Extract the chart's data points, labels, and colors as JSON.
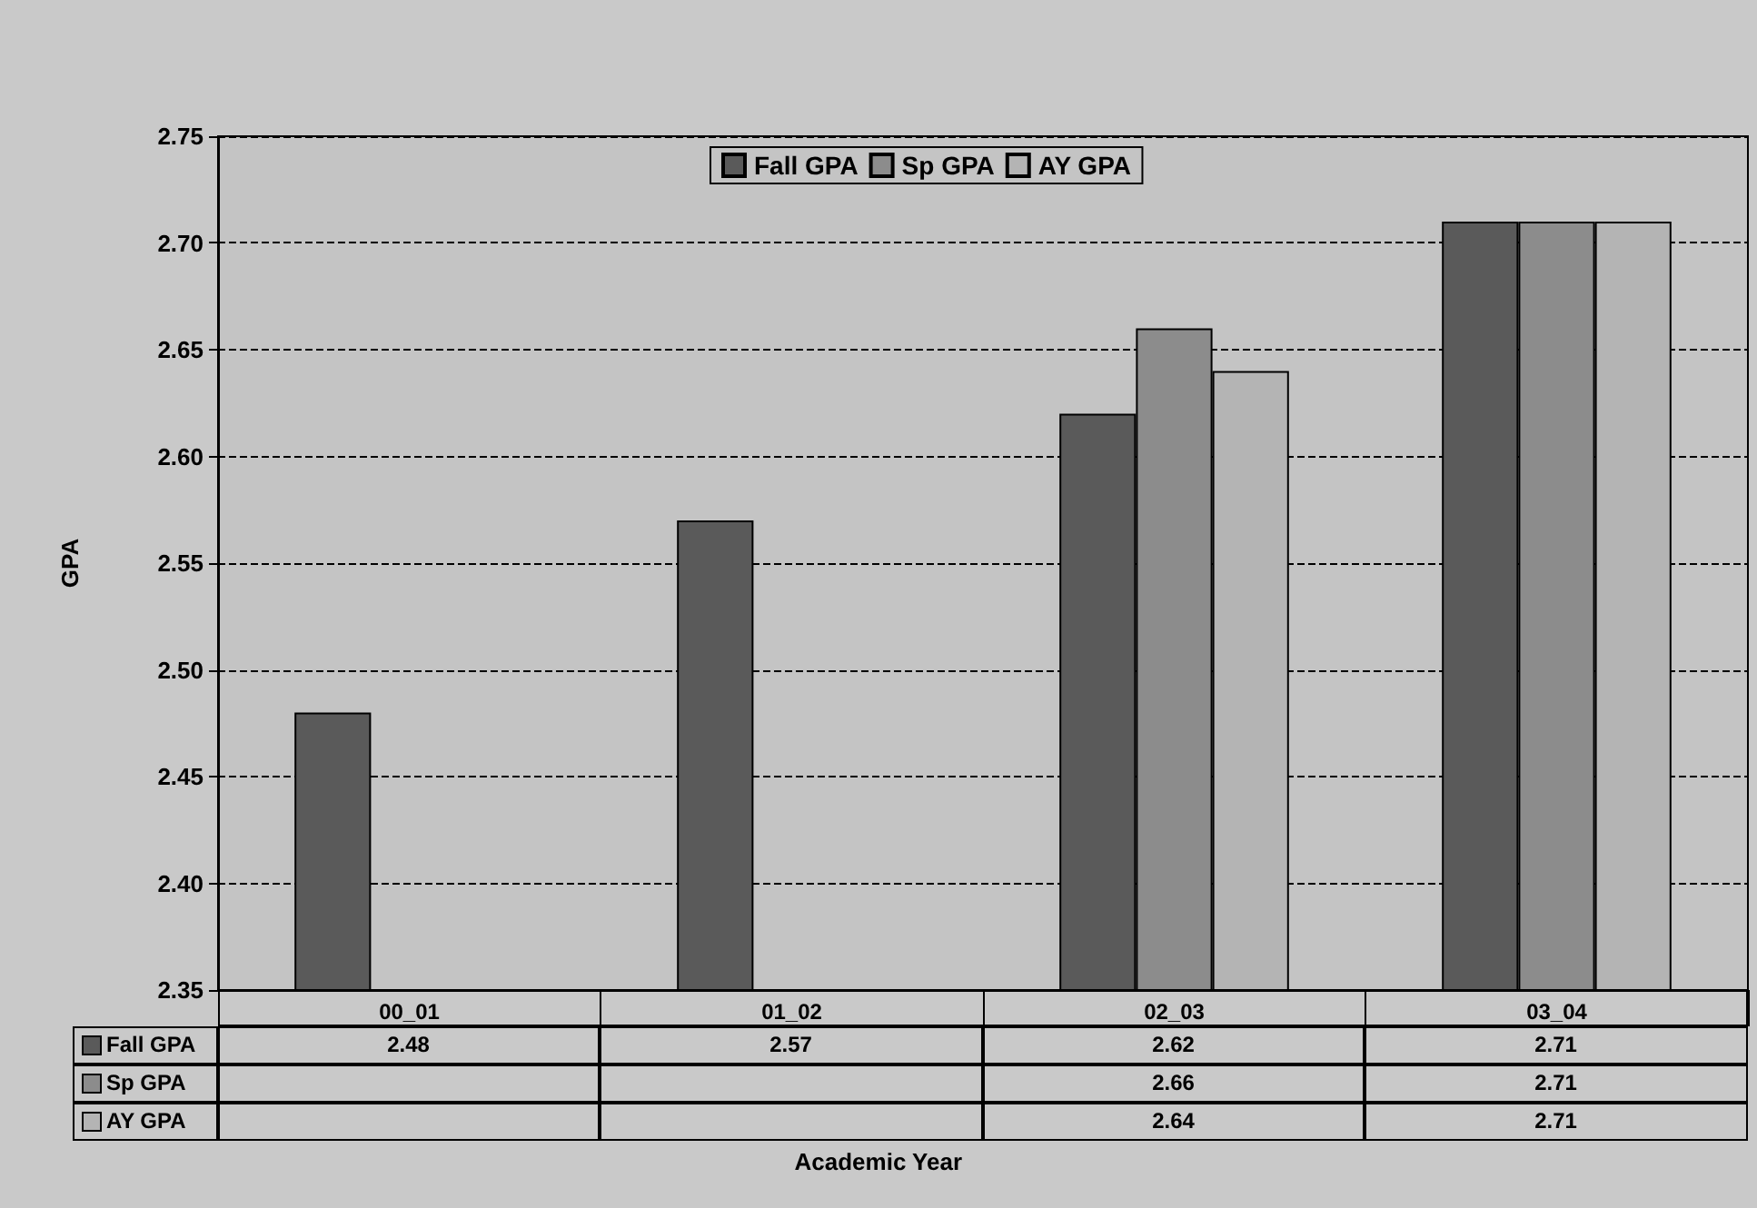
{
  "chart_data": {
    "type": "bar",
    "annotations": [
      "Academic Year"
    ],
    "ylabel": "GPA",
    "categories": [
      "00_01",
      "01_02",
      "02_03",
      "03_04"
    ],
    "series": [
      {
        "name": "Fall GPA",
        "color": "#5a5a5a",
        "values": [
          2.48,
          2.57,
          2.62,
          2.71
        ]
      },
      {
        "name": "Sp GPA",
        "color": "#8c8c8c",
        "values": [
          null,
          null,
          2.66,
          2.71
        ]
      },
      {
        "name": "AY GPA",
        "color": "#b4b4b4",
        "values": [
          null,
          null,
          2.64,
          2.71
        ]
      }
    ],
    "ylim": [
      2.35,
      2.75
    ],
    "yticks": [
      2.35,
      {
        "value": 2.4,
        "label": "2.40"
      },
      2.45,
      {
        "value": 2.5,
        "label": "2.50"
      },
      2.55,
      {
        "value": 2.6,
        "label": "2.60"
      },
      2.65,
      {
        "value": 2.7,
        "label": "2.70"
      },
      2.75
    ],
    "grid": "y",
    "legend": "top",
    "data_labels": true
  }
}
